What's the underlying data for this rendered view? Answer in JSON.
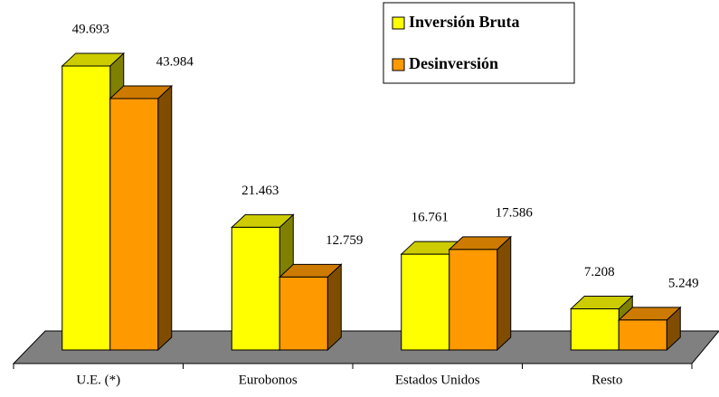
{
  "chart_data": {
    "type": "bar3d",
    "categories": [
      "U.E. (*)",
      "Eurobonos",
      "Estados Unidos",
      "Resto"
    ],
    "series": [
      {
        "name": "Inversión Bruta",
        "color": "#ffff00",
        "values": [
          49.693,
          21.463,
          16.761,
          7.208
        ]
      },
      {
        "name": "Desinversión",
        "color": "#ff9900",
        "values": [
          43.984,
          12.759,
          17.586,
          5.249
        ]
      }
    ],
    "legend": "upper right"
  }
}
